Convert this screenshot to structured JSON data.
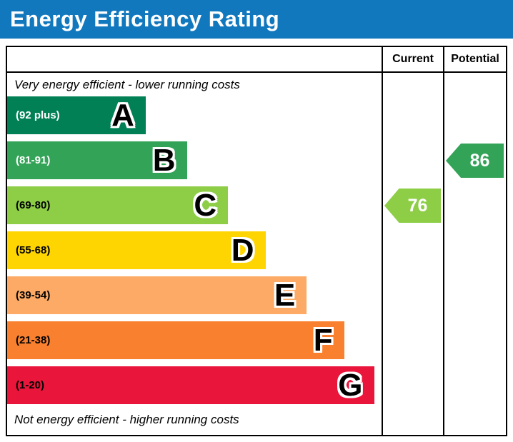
{
  "title": "Energy Efficiency Rating",
  "columns": {
    "current": "Current",
    "potential": "Potential"
  },
  "captions": {
    "top": "Very energy efficient - lower running costs",
    "bottom": "Not energy efficient - higher running costs"
  },
  "colors": {
    "title_bg": "#1278be",
    "title_text": "#ffffff",
    "border": "#000000"
  },
  "chart_data": {
    "type": "bar",
    "title": "Energy Efficiency Rating",
    "orientation": "horizontal",
    "bands": [
      {
        "letter": "A",
        "range": "(92 plus)",
        "min": 92,
        "max": 100,
        "color": "#008054",
        "label_color": "#ffffff",
        "width_pct": 37
      },
      {
        "letter": "B",
        "range": "(81-91)",
        "min": 81,
        "max": 91,
        "color": "#33a357",
        "label_color": "#ffffff",
        "width_pct": 48
      },
      {
        "letter": "C",
        "range": "(69-80)",
        "min": 69,
        "max": 80,
        "color": "#8dce46",
        "label_color": "#000000",
        "width_pct": 59
      },
      {
        "letter": "D",
        "range": "(55-68)",
        "min": 55,
        "max": 68,
        "color": "#fed501",
        "label_color": "#000000",
        "width_pct": 69
      },
      {
        "letter": "E",
        "range": "(39-54)",
        "min": 39,
        "max": 54,
        "color": "#fcaa65",
        "label_color": "#000000",
        "width_pct": 80
      },
      {
        "letter": "F",
        "range": "(21-38)",
        "min": 21,
        "max": 38,
        "color": "#f8802e",
        "label_color": "#000000",
        "width_pct": 90
      },
      {
        "letter": "G",
        "range": "(1-20)",
        "min": 1,
        "max": 20,
        "color": "#e9153b",
        "label_color": "#000000",
        "width_pct": 98
      }
    ],
    "ratings": {
      "current": {
        "value": "76",
        "band": "C",
        "band_index": 2,
        "color": "#8dce46"
      },
      "potential": {
        "value": "86",
        "band": "B",
        "band_index": 1,
        "color": "#33a357"
      }
    }
  }
}
